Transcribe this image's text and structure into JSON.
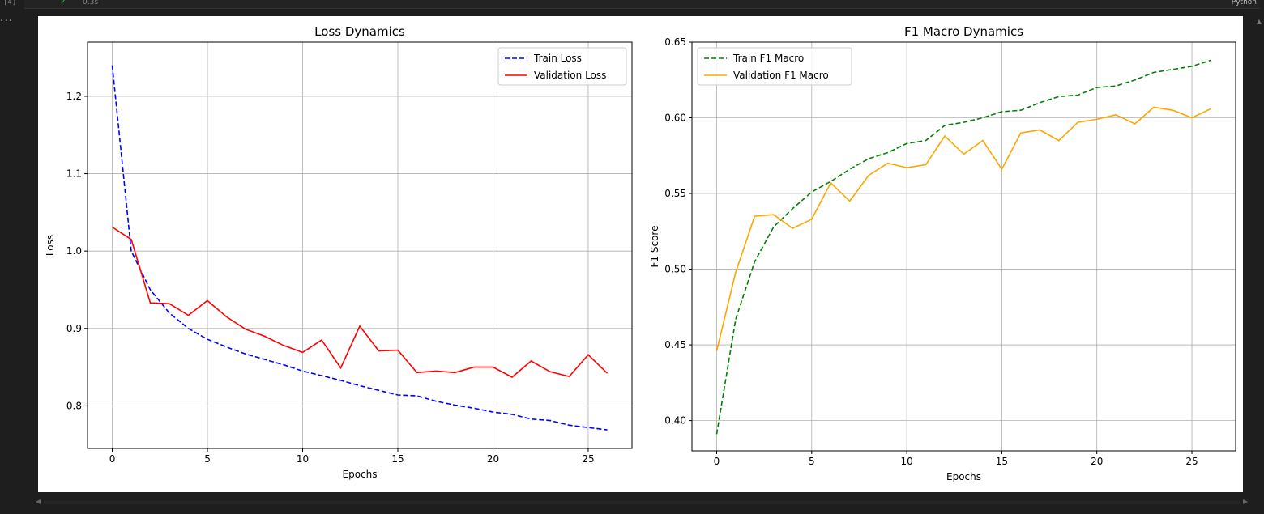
{
  "notebook": {
    "execution_count": "[4]",
    "exec_time": "0.3s",
    "kernel": "Python",
    "more_label": "..."
  },
  "colors": {
    "train_loss": "#0000ff",
    "val_loss": "#ff0000",
    "train_f1": "#008000",
    "val_f1": "#ffa500",
    "grid": "#b0b0b0"
  },
  "chart_data": [
    {
      "type": "line",
      "title": "Loss Dynamics",
      "xlabel": "Epochs",
      "ylabel": "Loss",
      "xlim": [
        -1.3,
        27.3
      ],
      "ylim": [
        0.745,
        1.27
      ],
      "xticks": [
        0,
        5,
        10,
        15,
        20,
        25
      ],
      "yticks": [
        0.8,
        0.9,
        1.0,
        1.1,
        1.2
      ],
      "ytick_labels": [
        "0.8",
        "0.9",
        "1.0",
        "1.1",
        "1.2"
      ],
      "grid": true,
      "legend": "top-right",
      "x": [
        0,
        1,
        2,
        3,
        4,
        5,
        6,
        7,
        8,
        9,
        10,
        11,
        12,
        13,
        14,
        15,
        16,
        17,
        18,
        19,
        20,
        21,
        22,
        23,
        24,
        25,
        26
      ],
      "series": [
        {
          "name": "Train Loss",
          "style": "dashed",
          "color": "#0000ff",
          "values": [
            1.24,
            1.0,
            0.95,
            0.92,
            0.9,
            0.886,
            0.876,
            0.867,
            0.86,
            0.853,
            0.845,
            0.839,
            0.833,
            0.826,
            0.82,
            0.814,
            0.813,
            0.806,
            0.801,
            0.797,
            0.792,
            0.789,
            0.783,
            0.781,
            0.775,
            0.772,
            0.769
          ]
        },
        {
          "name": "Validation Loss",
          "style": "solid",
          "color": "#ff0000",
          "values": [
            1.031,
            1.015,
            0.933,
            0.932,
            0.917,
            0.936,
            0.915,
            0.899,
            0.89,
            0.878,
            0.869,
            0.885,
            0.849,
            0.903,
            0.871,
            0.872,
            0.843,
            0.845,
            0.843,
            0.85,
            0.85,
            0.837,
            0.858,
            0.844,
            0.838,
            0.866,
            0.842
          ]
        }
      ]
    },
    {
      "type": "line",
      "title": "F1 Macro Dynamics",
      "xlabel": "Epochs",
      "ylabel": "F1 Score",
      "xlim": [
        -1.3,
        27.3
      ],
      "ylim": [
        0.38,
        0.65
      ],
      "xticks": [
        0,
        5,
        10,
        15,
        20,
        25
      ],
      "yticks": [
        0.4,
        0.45,
        0.5,
        0.55,
        0.6,
        0.65
      ],
      "ytick_labels": [
        "0.40",
        "0.45",
        "0.50",
        "0.55",
        "0.60",
        "0.65"
      ],
      "grid": true,
      "legend": "top-left",
      "x": [
        0,
        1,
        2,
        3,
        4,
        5,
        6,
        7,
        8,
        9,
        10,
        11,
        12,
        13,
        14,
        15,
        16,
        17,
        18,
        19,
        20,
        21,
        22,
        23,
        24,
        25,
        26
      ],
      "series": [
        {
          "name": "Train F1 Macro",
          "style": "dashed",
          "color": "#008000",
          "values": [
            0.391,
            0.467,
            0.505,
            0.528,
            0.54,
            0.551,
            0.558,
            0.566,
            0.573,
            0.577,
            0.583,
            0.585,
            0.595,
            0.597,
            0.6,
            0.604,
            0.605,
            0.61,
            0.614,
            0.615,
            0.62,
            0.621,
            0.625,
            0.63,
            0.632,
            0.634,
            0.638
          ]
        },
        {
          "name": "Validation F1 Macro",
          "style": "solid",
          "color": "#ffa500",
          "values": [
            0.446,
            0.498,
            0.535,
            0.536,
            0.527,
            0.533,
            0.557,
            0.545,
            0.562,
            0.57,
            0.567,
            0.569,
            0.588,
            0.576,
            0.585,
            0.566,
            0.59,
            0.592,
            0.585,
            0.597,
            0.599,
            0.602,
            0.596,
            0.607,
            0.605,
            0.6,
            0.606
          ]
        }
      ]
    }
  ]
}
